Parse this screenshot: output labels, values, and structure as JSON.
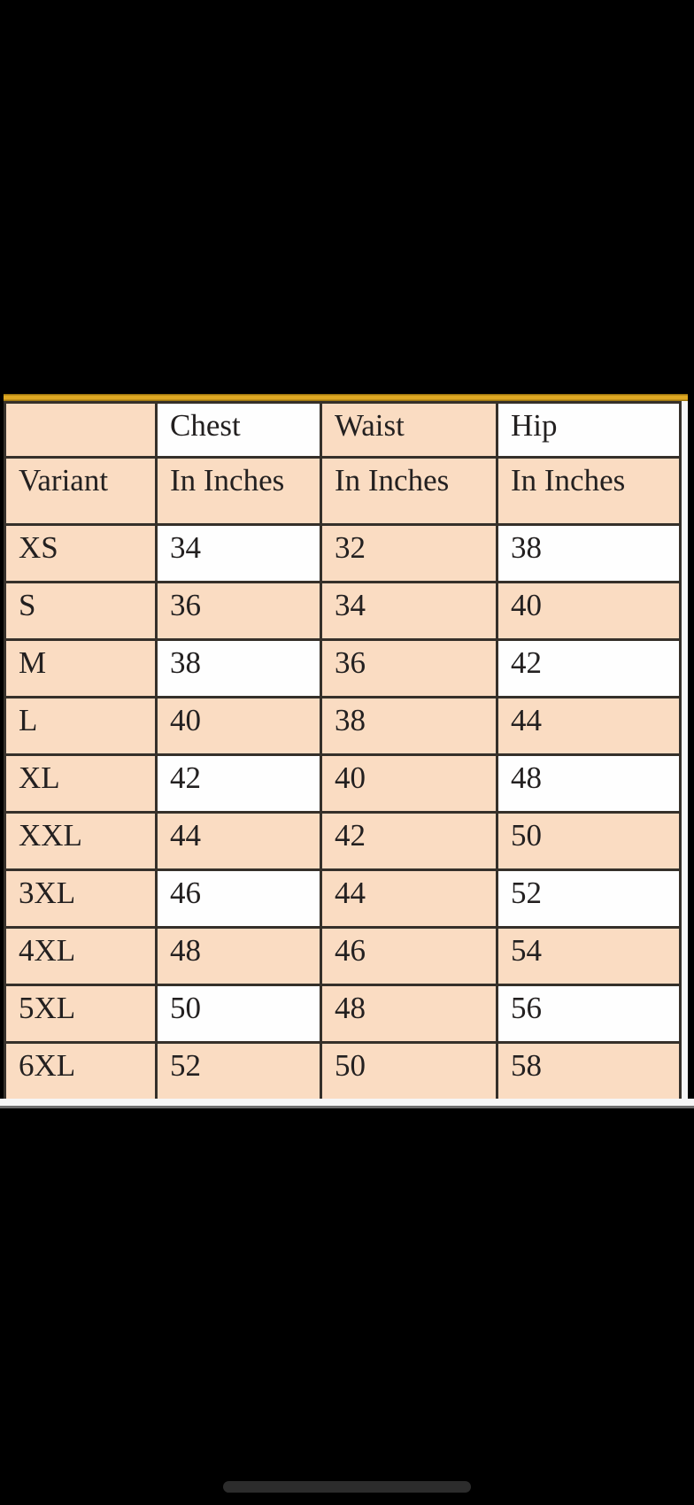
{
  "table": {
    "header_row1": [
      "",
      "Chest",
      "Waist",
      "Hip"
    ],
    "header_row2": [
      "Variant",
      "In Inches",
      "In Inches",
      "In Inches"
    ],
    "rows": [
      {
        "variant": "XS",
        "chest": "34",
        "waist": "32",
        "hip": "38"
      },
      {
        "variant": "S",
        "chest": "36",
        "waist": "34",
        "hip": "40"
      },
      {
        "variant": "M",
        "chest": "38",
        "waist": "36",
        "hip": "42"
      },
      {
        "variant": "L",
        "chest": "40",
        "waist": "38",
        "hip": "44"
      },
      {
        "variant": "XL",
        "chest": "42",
        "waist": "40",
        "hip": "48"
      },
      {
        "variant": "XXL",
        "chest": "44",
        "waist": "42",
        "hip": "50"
      },
      {
        "variant": "3XL",
        "chest": "46",
        "waist": "44",
        "hip": "52"
      },
      {
        "variant": "4XL",
        "chest": "48",
        "waist": "46",
        "hip": "54"
      },
      {
        "variant": "5XL",
        "chest": "50",
        "waist": "48",
        "hip": "56"
      },
      {
        "variant": "6XL",
        "chest": "52",
        "waist": "50",
        "hip": "58"
      }
    ]
  },
  "colors": {
    "screen_bg": "#000000",
    "peach": "#fadcc2",
    "white_cell": "#fefefe",
    "table_border": "#35302a",
    "gold": "#e0a923",
    "text": "#232020",
    "photo_white": "#f6f6f6",
    "edge_gray": "#6e6e6e",
    "pill": "#2c2c2c"
  }
}
